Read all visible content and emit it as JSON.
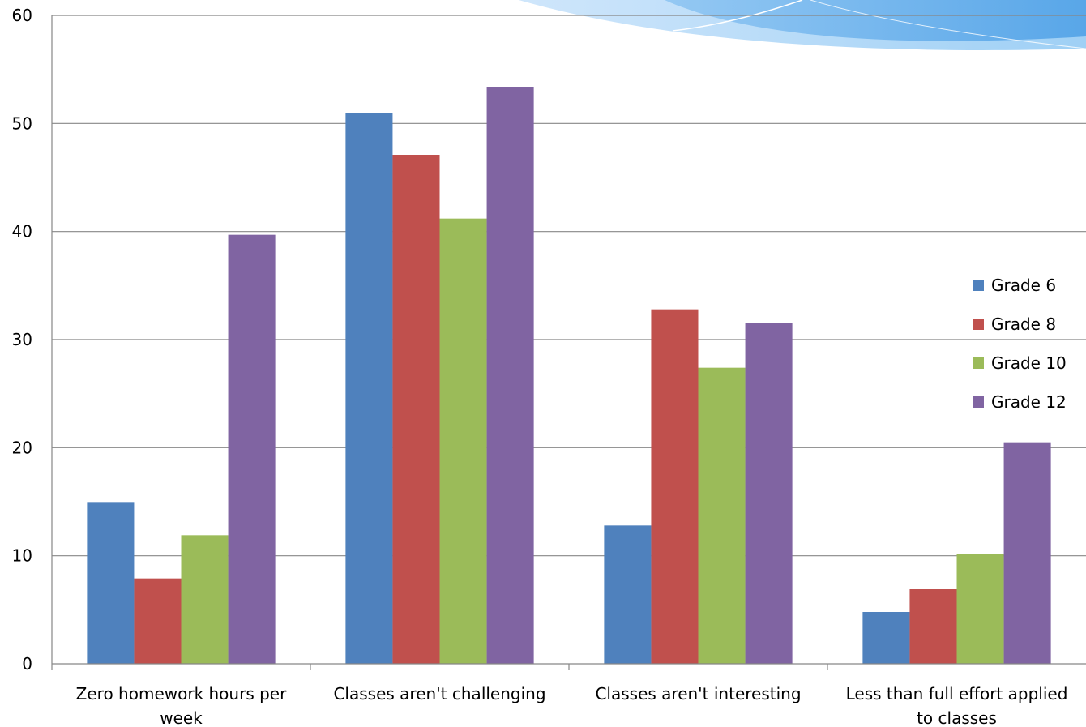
{
  "chart_data": {
    "type": "bar",
    "title": "",
    "xlabel": "",
    "ylabel": "",
    "ylim": [
      0,
      60
    ],
    "yticks": [
      0,
      10,
      20,
      30,
      40,
      50,
      60
    ],
    "grid": true,
    "legend_position": "right",
    "categories": [
      [
        "Zero homework hours per",
        "week"
      ],
      [
        "Classes aren't challenging"
      ],
      [
        "Classes aren't interesting"
      ],
      [
        "Less than full effort applied",
        "to classes"
      ]
    ],
    "series": [
      {
        "name": "Grade 6",
        "color": "#4F81BD",
        "values": [
          14.9,
          51.0,
          12.8,
          4.8
        ]
      },
      {
        "name": "Grade 8",
        "color": "#C0504D",
        "values": [
          7.9,
          47.1,
          32.8,
          6.9
        ]
      },
      {
        "name": "Grade 10",
        "color": "#9BBB59",
        "values": [
          11.9,
          41.2,
          27.4,
          10.2
        ]
      },
      {
        "name": "Grade 12",
        "color": "#8064A2",
        "values": [
          39.7,
          53.4,
          31.5,
          20.5
        ]
      }
    ]
  }
}
